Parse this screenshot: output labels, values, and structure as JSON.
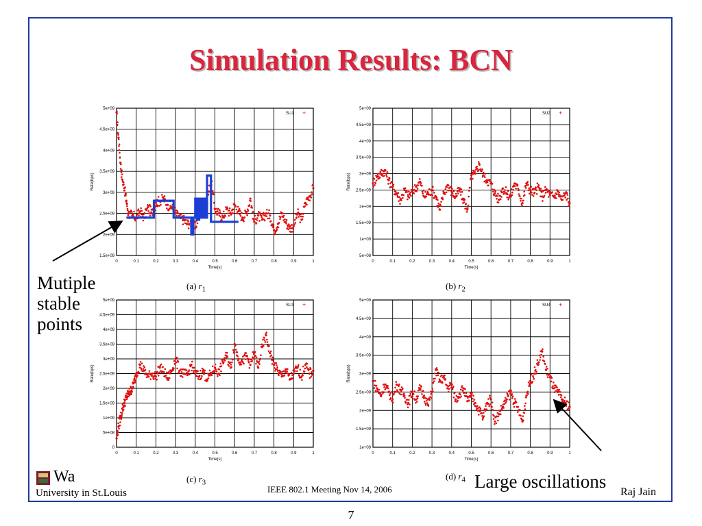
{
  "slide": {
    "title": "Simulation Results: BCN",
    "footer_center": "IEEE 802.1 Meeting  Nov 14, 2006",
    "footer_right": "Raj Jain",
    "page_number": "7",
    "logo_abbrev": "Wa",
    "logo_text": "University in St.Louis",
    "left_note": [
      "Mutiple",
      "stable",
      "points"
    ],
    "right_note": "Large oscillations",
    "accent_color": "#d7263d",
    "frame_color": "#1f3a9a",
    "series_color": "#e01010",
    "overlay_color": "#1b3fd6"
  },
  "chart_data": [
    {
      "type": "scatter",
      "caption_letter": "(a)",
      "caption_var": "r",
      "caption_sub": "1",
      "legend": "SU1",
      "xlabel": "Time(s)",
      "ylabel": "Rate(bps)",
      "xlim": [
        0,
        1
      ],
      "ylim": [
        1500000000,
        5000000000
      ],
      "yticks": [
        "1.5e+09",
        "2e+09",
        "2.5e+09",
        "3e+09",
        "3.5e+09",
        "4e+09",
        "4.5e+09",
        "5e+09"
      ],
      "xticks": [
        "0",
        "0.1",
        "0.2",
        "0.3",
        "0.4",
        "0.5",
        "0.6",
        "0.7",
        "0.8",
        "0.9",
        "1"
      ],
      "grid": true,
      "series": [
        {
          "x": [
            0,
            0.01,
            0.02,
            0.03,
            0.04,
            0.05,
            0.06,
            0.08,
            0.1,
            0.12,
            0.14,
            0.16,
            0.18,
            0.2,
            0.22,
            0.24,
            0.26,
            0.28,
            0.3,
            0.32,
            0.34,
            0.36,
            0.38,
            0.4,
            0.42,
            0.44,
            0.46,
            0.48,
            0.5,
            0.52,
            0.54,
            0.56,
            0.58,
            0.6,
            0.62,
            0.64,
            0.66,
            0.68,
            0.7,
            0.72,
            0.74,
            0.76,
            0.78,
            0.8,
            0.82,
            0.84,
            0.86,
            0.88,
            0.9,
            0.92,
            0.94,
            0.96,
            0.98,
            1
          ],
          "y": [
            4900000000,
            4300000000,
            3700000000,
            3300000000,
            3100000000,
            2800000000,
            2500000000,
            2450000000,
            2400000000,
            2550000000,
            2400000000,
            2650000000,
            2500000000,
            2750000000,
            2800000000,
            2850000000,
            2700000000,
            2650000000,
            2500000000,
            2400000000,
            2350000000,
            2250000000,
            2300000000,
            2150000000,
            2500000000,
            2600000000,
            2800000000,
            3300000000,
            2600000000,
            2500000000,
            2400000000,
            2600000000,
            2500000000,
            2700000000,
            2550000000,
            2400000000,
            2500000000,
            2850000000,
            2300000000,
            2450000000,
            2350000000,
            2500000000,
            2450000000,
            2100000000,
            2250000000,
            2500000000,
            2300000000,
            2150000000,
            2200000000,
            2500000000,
            2350000000,
            2750000000,
            2900000000,
            3100000000
          ]
        },
        {
          "name": "stable points",
          "step": true,
          "x": [
            0.05,
            0.1,
            0.19,
            0.29,
            0.37,
            0.38,
            0.39,
            0.4,
            0.41,
            0.42,
            0.43,
            0.44,
            0.45,
            0.46,
            0.47,
            0.48,
            0.49,
            0.5,
            0.62
          ],
          "y": [
            2400000000,
            2400000000,
            2800000000,
            2400000000,
            2400000000,
            2000000000,
            2400000000,
            2850000000,
            2350000000,
            2850000000,
            2400000000,
            2850000000,
            2400000000,
            3400000000,
            3400000000,
            2300000000,
            2300000000,
            2300000000,
            2300000000
          ]
        }
      ]
    },
    {
      "type": "scatter",
      "caption_letter": "(b)",
      "caption_var": "r",
      "caption_sub": "2",
      "legend": "SU2",
      "xlabel": "Time(s)",
      "ylabel": "Rate(bps)",
      "xlim": [
        0,
        1
      ],
      "ylim": [
        500000000,
        5000000000
      ],
      "yticks": [
        "5e+08",
        "1e+09",
        "1.5e+09",
        "2e+09",
        "2.5e+09",
        "3e+09",
        "3.5e+09",
        "4e+09",
        "4.5e+09",
        "5e+09"
      ],
      "xticks": [
        "0",
        "0.1",
        "0.2",
        "0.3",
        "0.4",
        "0.5",
        "0.6",
        "0.7",
        "0.8",
        "0.9",
        "1"
      ],
      "grid": true,
      "series": [
        {
          "x": [
            0,
            0.02,
            0.04,
            0.06,
            0.08,
            0.1,
            0.12,
            0.14,
            0.16,
            0.18,
            0.2,
            0.22,
            0.24,
            0.26,
            0.28,
            0.3,
            0.32,
            0.34,
            0.36,
            0.38,
            0.4,
            0.42,
            0.44,
            0.46,
            0.48,
            0.5,
            0.52,
            0.54,
            0.56,
            0.58,
            0.6,
            0.62,
            0.64,
            0.66,
            0.68,
            0.7,
            0.72,
            0.74,
            0.76,
            0.78,
            0.8,
            0.82,
            0.84,
            0.86,
            0.88,
            0.9,
            0.92,
            0.94,
            0.96,
            0.98,
            1
          ],
          "y": [
            2700000000,
            2900000000,
            3000000000,
            3100000000,
            2800000000,
            2600000000,
            2400000000,
            2200000000,
            2500000000,
            2300000000,
            2450000000,
            2600000000,
            2750000000,
            2300000000,
            2400000000,
            2500000000,
            2300000000,
            1900000000,
            2400000000,
            2650000000,
            2450000000,
            2300000000,
            2500000000,
            2200000000,
            1900000000,
            2950000000,
            3000000000,
            3300000000,
            2950000000,
            2800000000,
            2700000000,
            2400000000,
            2200000000,
            2550000000,
            2400000000,
            2300000000,
            2700000000,
            2500000000,
            2100000000,
            2700000000,
            2500000000,
            2400000000,
            2600000000,
            2300000000,
            2500000000,
            2350000000,
            2300000000,
            2450000000,
            2200000000,
            2400000000,
            2100000000
          ]
        }
      ]
    },
    {
      "type": "scatter",
      "caption_letter": "(c)",
      "caption_var": "r",
      "caption_sub": "3",
      "legend": "SU3",
      "xlabel": "Time(s)",
      "ylabel": "Rate(bps)",
      "xlim": [
        0,
        1
      ],
      "ylim": [
        0,
        5000000000
      ],
      "yticks": [
        "0",
        "5e+08",
        "1e+09",
        "1.5e+09",
        "2e+09",
        "2.5e+09",
        "3e+09",
        "3.5e+09",
        "4e+09",
        "4.5e+09",
        "5e+09"
      ],
      "xticks": [
        "0",
        "0.1",
        "0.2",
        "0.3",
        "0.4",
        "0.5",
        "0.6",
        "0.7",
        "0.8",
        "0.9",
        "1"
      ],
      "grid": true,
      "series": [
        {
          "x": [
            0,
            0.01,
            0.02,
            0.03,
            0.04,
            0.05,
            0.06,
            0.07,
            0.08,
            0.09,
            0.1,
            0.12,
            0.14,
            0.16,
            0.18,
            0.2,
            0.22,
            0.24,
            0.26,
            0.28,
            0.3,
            0.32,
            0.34,
            0.36,
            0.38,
            0.4,
            0.42,
            0.44,
            0.46,
            0.48,
            0.5,
            0.52,
            0.54,
            0.56,
            0.58,
            0.6,
            0.62,
            0.64,
            0.66,
            0.68,
            0.7,
            0.72,
            0.74,
            0.76,
            0.78,
            0.8,
            0.82,
            0.84,
            0.86,
            0.88,
            0.9,
            0.92,
            0.94,
            0.96,
            0.98,
            1
          ],
          "y": [
            300000000,
            700000000,
            1000000000,
            1300000000,
            1500000000,
            1700000000,
            1800000000,
            1900000000,
            2000000000,
            2200000000,
            2500000000,
            2800000000,
            2600000000,
            2400000000,
            2500000000,
            2400000000,
            2700000000,
            2550000000,
            2350000000,
            2600000000,
            3000000000,
            2600000000,
            2500000000,
            2450000000,
            2800000000,
            2500000000,
            2400000000,
            2600000000,
            2300000000,
            2500000000,
            2700000000,
            2500000000,
            2900000000,
            3100000000,
            2700000000,
            3500000000,
            3000000000,
            2900000000,
            3100000000,
            2800000000,
            3200000000,
            2700000000,
            3400000000,
            3800000000,
            3200000000,
            2800000000,
            2600000000,
            2400000000,
            2650000000,
            2300000000,
            2500000000,
            2700000000,
            2400000000,
            2800000000,
            2500000000,
            2600000000
          ]
        }
      ]
    },
    {
      "type": "scatter",
      "caption_letter": "(d)",
      "caption_var": "r",
      "caption_sub": "4",
      "legend": "SU4",
      "xlabel": "Time(s)",
      "ylabel": "Rate(bps)",
      "xlim": [
        0,
        1
      ],
      "ylim": [
        1000000000,
        5000000000
      ],
      "yticks": [
        "1e+09",
        "1.5e+09",
        "2e+09",
        "2.5e+09",
        "3e+09",
        "3.5e+09",
        "4e+09",
        "4.5e+09",
        "5e+09"
      ],
      "xticks": [
        "0",
        "0.1",
        "0.2",
        "0.3",
        "0.4",
        "0.5",
        "0.6",
        "0.7",
        "0.8",
        "0.9",
        "1"
      ],
      "grid": true,
      "series": [
        {
          "x": [
            0,
            0.02,
            0.04,
            0.06,
            0.08,
            0.1,
            0.12,
            0.14,
            0.16,
            0.18,
            0.2,
            0.22,
            0.24,
            0.26,
            0.28,
            0.3,
            0.32,
            0.34,
            0.36,
            0.38,
            0.4,
            0.42,
            0.44,
            0.46,
            0.48,
            0.5,
            0.52,
            0.54,
            0.56,
            0.58,
            0.6,
            0.62,
            0.64,
            0.66,
            0.68,
            0.7,
            0.72,
            0.74,
            0.76,
            0.78,
            0.8,
            0.82,
            0.84,
            0.86,
            0.88,
            0.9,
            0.92,
            0.94,
            0.96,
            0.98,
            1
          ],
          "y": [
            2800000000,
            2600000000,
            2400000000,
            2700000000,
            2500000000,
            2300000000,
            2700000000,
            2550000000,
            2400000000,
            2200000000,
            2500000000,
            2300000000,
            2600000000,
            2400000000,
            2150000000,
            2500000000,
            3100000000,
            2800000000,
            2900000000,
            2600000000,
            2700000000,
            2300000000,
            2450000000,
            2600000000,
            2250000000,
            2400000000,
            2200000000,
            2000000000,
            1800000000,
            2200000000,
            2300000000,
            1700000000,
            1900000000,
            2100000000,
            2300000000,
            2500000000,
            2200000000,
            2000000000,
            1700000000,
            2400000000,
            2800000000,
            3000000000,
            3300000000,
            3600000000,
            3100000000,
            2900000000,
            2600000000,
            2500000000,
            2300000000,
            2200000000,
            2100000000
          ]
        }
      ]
    }
  ]
}
